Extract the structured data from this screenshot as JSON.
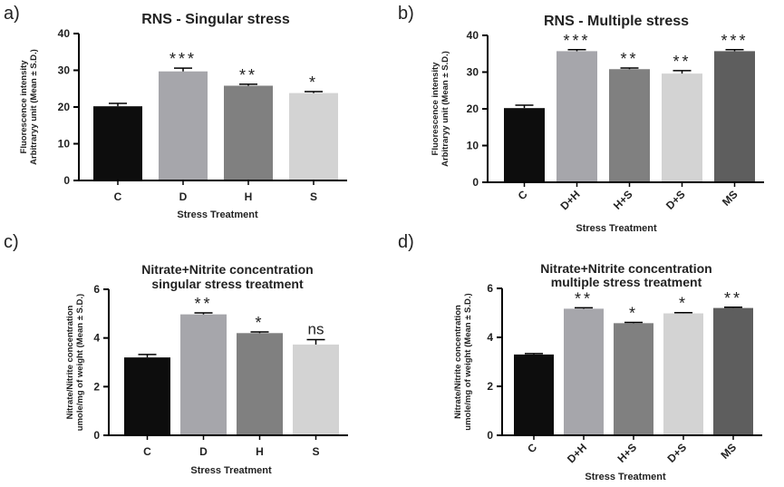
{
  "panels": [
    {
      "letter": "a)"
    },
    {
      "letter": "b)"
    },
    {
      "letter": "c)"
    },
    {
      "letter": "d)"
    }
  ],
  "colors": {
    "C": "#0d0d0d",
    "D": "#a6a6ab",
    "H": "#808080",
    "S": "#d3d3d3",
    "D+H": "#a6a6ab",
    "H+S": "#808080",
    "D+S": "#d3d3d3",
    "MS": "#5e5e5e",
    "axis": "#000000",
    "text": "#222222"
  },
  "chart_data": [
    {
      "type": "bar",
      "title": "RNS - Singular stress",
      "xlabel": "Stress Treatment",
      "ylabel": [
        "Fluorescence intensity",
        "Arbitraryy unit (Mean ± S.D.)"
      ],
      "categories": [
        "C",
        "D",
        "H",
        "S"
      ],
      "values": [
        20.2,
        29.7,
        25.8,
        23.8
      ],
      "errors": [
        0.8,
        0.9,
        0.4,
        0.4
      ],
      "significance": [
        "",
        "***",
        "**",
        "*"
      ],
      "ylim": [
        0,
        40
      ],
      "yticks": [
        0,
        10,
        20,
        30,
        40
      ],
      "rotate_xticks": false
    },
    {
      "type": "bar",
      "title": "RNS - Multiple stress",
      "xlabel": "Stress Treatment",
      "ylabel": [
        "Fluorescence intensity",
        "Arbitraryy unit (Mean ± S.D.)"
      ],
      "categories": [
        "C",
        "D+H",
        "H+S",
        "D+S",
        "MS"
      ],
      "values": [
        20.2,
        35.7,
        30.8,
        29.6,
        35.7
      ],
      "errors": [
        0.8,
        0.4,
        0.3,
        0.8,
        0.4
      ],
      "significance": [
        "",
        "***",
        "**",
        "**",
        "***"
      ],
      "ylim": [
        0,
        40
      ],
      "yticks": [
        0,
        10,
        20,
        30,
        40
      ],
      "rotate_xticks": true
    },
    {
      "type": "bar",
      "title": [
        "Nitrate+Nitrite concentration",
        "singular stress treatment"
      ],
      "xlabel": "Stress Treatment",
      "ylabel": [
        "Nitrate/Nitrite concentration",
        "umole/mg of weight (Mean ± S.D.)"
      ],
      "categories": [
        "C",
        "D",
        "H",
        "S"
      ],
      "values": [
        3.2,
        4.97,
        4.2,
        3.73
      ],
      "errors": [
        0.12,
        0.06,
        0.05,
        0.2
      ],
      "significance": [
        "",
        "**",
        "*",
        "ns"
      ],
      "ylim": [
        0,
        6
      ],
      "yticks": [
        0,
        2,
        4,
        6
      ],
      "rotate_xticks": false
    },
    {
      "type": "bar",
      "title": [
        "Nitrate+Nitrite concentration",
        "multiple stress treatment"
      ],
      "xlabel": "Stress Treatment",
      "ylabel": [
        "Nitrate/Nitrite concentration",
        "umole/mg of weight (Mean ± S.D.)"
      ],
      "categories": [
        "C",
        "D+H",
        "H+S",
        "D+S",
        "MS"
      ],
      "values": [
        3.3,
        5.17,
        4.58,
        4.98,
        5.2
      ],
      "errors": [
        0.04,
        0.04,
        0.03,
        0.03,
        0.03
      ],
      "significance": [
        "",
        "**",
        "*",
        "*",
        "**"
      ],
      "ylim": [
        0,
        6
      ],
      "yticks": [
        0,
        2,
        4,
        6
      ],
      "rotate_xticks": true
    }
  ]
}
